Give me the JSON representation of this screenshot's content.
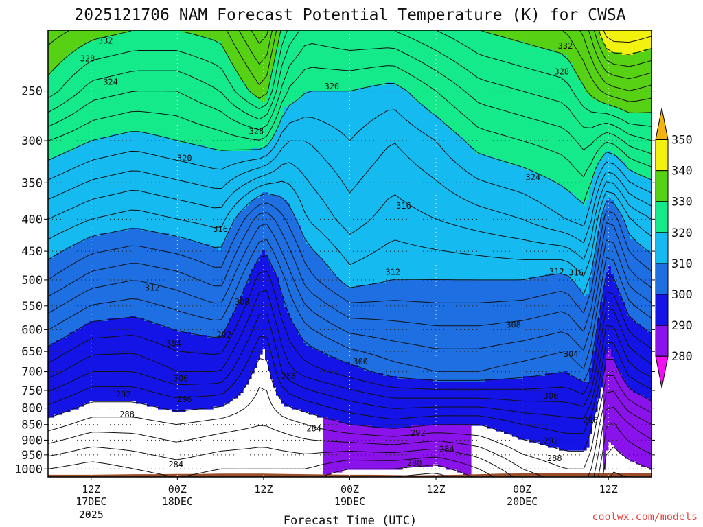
{
  "chart_data": {
    "type": "heatmap",
    "title": "2025121706 NAM Forecast Potential Temperature (K) for CWSA",
    "xlabel": "Forecast Time (UTC)",
    "ylabel": "",
    "credit": "coolwx.com/models",
    "y_scale": "log-pressure",
    "ylim": [
      1030,
      200
    ],
    "y_ticks": [
      "250",
      "300",
      "350",
      "400",
      "450",
      "500",
      "550",
      "600",
      "650",
      "700",
      "750",
      "800",
      "850",
      "900",
      "950",
      "1000"
    ],
    "xlim_hours": [
      6,
      90
    ],
    "x_ticks": [
      {
        "hour": 12,
        "label": "12Z",
        "sub1": "17DEC",
        "sub2": "2025"
      },
      {
        "hour": 24,
        "label": "00Z",
        "sub1": "18DEC",
        "sub2": ""
      },
      {
        "hour": 36,
        "label": "12Z",
        "sub1": "",
        "sub2": ""
      },
      {
        "hour": 48,
        "label": "00Z",
        "sub1": "19DEC",
        "sub2": ""
      },
      {
        "hour": 60,
        "label": "12Z",
        "sub1": "",
        "sub2": ""
      },
      {
        "hour": 72,
        "label": "00Z",
        "sub1": "20DEC",
        "sub2": ""
      },
      {
        "hour": 84,
        "label": "12Z",
        "sub1": "",
        "sub2": ""
      }
    ],
    "colorbar": {
      "levels": [
        270,
        280,
        290,
        300,
        310,
        320,
        330,
        340,
        350,
        360
      ],
      "labels": [
        "280",
        "290",
        "300",
        "310",
        "320",
        "330",
        "340",
        "350"
      ],
      "colors": [
        "#f20ff2",
        "#8a12ea",
        "#1414e6",
        "#1e6fe2",
        "#15bbf0",
        "#14ea8a",
        "#57d114",
        "#f2f20e",
        "#f2b214"
      ]
    },
    "contour_interval": 2,
    "surface_pressure": [
      1022,
      1022,
      1022,
      1021,
      1020,
      1020,
      1019,
      1019,
      1018,
      1018,
      1018,
      1019,
      1020,
      1021,
      1022,
      1022,
      1023,
      1024,
      1023,
      1022,
      1020,
      1018,
      1017,
      1016,
      1015,
      1015,
      1016,
      1017
    ],
    "surface_pressure_hours": [
      6,
      9,
      12,
      15,
      18,
      21,
      24,
      27,
      30,
      33,
      36,
      39,
      42,
      45,
      48,
      51,
      54,
      57,
      60,
      63,
      66,
      69,
      72,
      75,
      78,
      81,
      84,
      90
    ],
    "profiles": {
      "hours": [
        6,
        12,
        18,
        24,
        30,
        36,
        39,
        42,
        48,
        54,
        60,
        66,
        72,
        78,
        81,
        84,
        87,
        90
      ],
      "p_levels": [
        1000,
        850,
        700,
        500,
        400,
        300,
        250,
        200
      ],
      "theta": [
        [
          282,
          289,
          297,
          308,
          314,
          322,
          329,
          333
        ],
        [
          281,
          287,
          294,
          305,
          312,
          320,
          325,
          331
        ],
        [
          282,
          287,
          294,
          304,
          311,
          319,
          324,
          330
        ],
        [
          283,
          288,
          296,
          305,
          312,
          320,
          324,
          330
        ],
        [
          282,
          287,
          296,
          307,
          313,
          321,
          326,
          331
        ],
        [
          282,
          286,
          288,
          296,
          304,
          322,
          332,
          338
        ],
        [
          282,
          287,
          295,
          302,
          308,
          316,
          322,
          328
        ],
        [
          282,
          288,
          297,
          307,
          312,
          316,
          320,
          325
        ],
        [
          280,
          290,
          299,
          311,
          315,
          318,
          320,
          326
        ],
        [
          280,
          291,
          301,
          310,
          313,
          316,
          319,
          326
        ],
        [
          279,
          290,
          302,
          310,
          314,
          318,
          322,
          328
        ],
        [
          282,
          290,
          302,
          310,
          315,
          321,
          325,
          330
        ],
        [
          286,
          292,
          301,
          310,
          316,
          322,
          326,
          331
        ],
        [
          288,
          293,
          300,
          309,
          318,
          323,
          327,
          332
        ],
        [
          288,
          293,
          302,
          312,
          319,
          325,
          330,
          335
        ],
        [
          278,
          281,
          287,
          298,
          305,
          322,
          333,
          344
        ],
        [
          279,
          284,
          293,
          305,
          312,
          325,
          334,
          344
        ],
        [
          280,
          286,
          295,
          307,
          314,
          326,
          333,
          343
        ]
      ]
    },
    "contour_labels": [
      {
        "value": "332",
        "hour": 14.0,
        "p": 208
      },
      {
        "value": "328",
        "hour": 11.5,
        "p": 222
      },
      {
        "value": "324",
        "hour": 14.7,
        "p": 242
      },
      {
        "value": "320",
        "hour": 45.5,
        "p": 246
      },
      {
        "value": "328",
        "hour": 35.0,
        "p": 290
      },
      {
        "value": "320",
        "hour": 25.0,
        "p": 320
      },
      {
        "value": "316",
        "hour": 30.0,
        "p": 415
      },
      {
        "value": "316",
        "hour": 55.5,
        "p": 381
      },
      {
        "value": "312",
        "hour": 20.5,
        "p": 515
      },
      {
        "value": "312",
        "hour": 54.0,
        "p": 486
      },
      {
        "value": "308",
        "hour": 33.0,
        "p": 542
      },
      {
        "value": "304",
        "hour": 23.5,
        "p": 632
      },
      {
        "value": "292",
        "hour": 30.5,
        "p": 612
      },
      {
        "value": "300",
        "hour": 24.5,
        "p": 718
      },
      {
        "value": "300",
        "hour": 49.5,
        "p": 675
      },
      {
        "value": "292",
        "hour": 16.5,
        "p": 761
      },
      {
        "value": "296",
        "hour": 25.0,
        "p": 775
      },
      {
        "value": "288",
        "hour": 17.0,
        "p": 819
      },
      {
        "value": "288",
        "hour": 39.5,
        "p": 712
      },
      {
        "value": "284",
        "hour": 43.0,
        "p": 862
      },
      {
        "value": "292",
        "hour": 57.5,
        "p": 877
      },
      {
        "value": "284",
        "hour": 61.5,
        "p": 930
      },
      {
        "value": "280",
        "hour": 57.0,
        "p": 980
      },
      {
        "value": "284",
        "hour": 23.8,
        "p": 984
      },
      {
        "value": "308",
        "hour": 70.8,
        "p": 590
      },
      {
        "value": "312",
        "hour": 76.8,
        "p": 485
      },
      {
        "value": "316",
        "hour": 79.5,
        "p": 487
      },
      {
        "value": "304",
        "hour": 78.8,
        "p": 656
      },
      {
        "value": "300",
        "hour": 76.0,
        "p": 765
      },
      {
        "value": "296",
        "hour": 81.5,
        "p": 837
      },
      {
        "value": "292",
        "hour": 76.0,
        "p": 903
      },
      {
        "value": "288",
        "hour": 76.5,
        "p": 962
      },
      {
        "value": "324",
        "hour": 73.5,
        "p": 343
      },
      {
        "value": "328",
        "hour": 77.5,
        "p": 233
      },
      {
        "value": "332",
        "hour": 78.0,
        "p": 212
      }
    ]
  }
}
